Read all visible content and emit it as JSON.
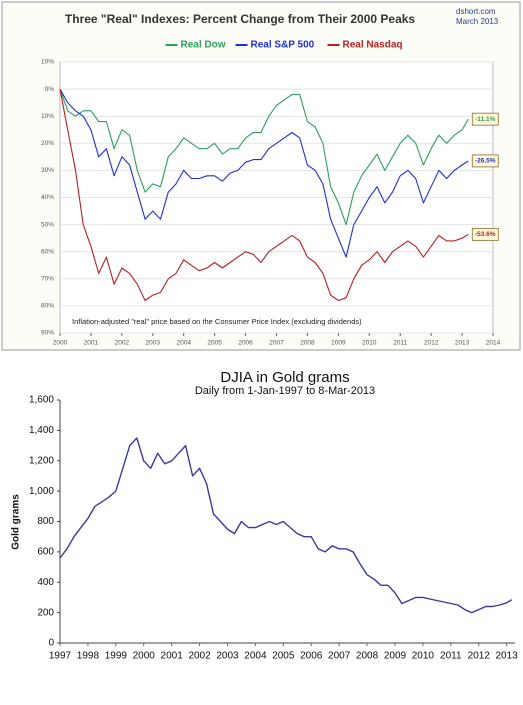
{
  "chart_data": [
    {
      "type": "line",
      "title": "Three \"Real\" Indexes: Percent Change from Their 2000 Peaks",
      "source": "dshort.com",
      "date_note": "March 2013",
      "note": "Inflation-adjusted \"real\" price based on the Consumer Price Index (excluding dividends)",
      "x": [
        2000,
        2000.25,
        2000.5,
        2000.75,
        2001,
        2001.25,
        2001.5,
        2001.75,
        2002,
        2002.25,
        2002.5,
        2002.75,
        2003,
        2003.25,
        2003.5,
        2003.75,
        2004,
        2004.25,
        2004.5,
        2004.75,
        2005,
        2005.25,
        2005.5,
        2005.75,
        2006,
        2006.25,
        2006.5,
        2006.75,
        2007,
        2007.25,
        2007.5,
        2007.75,
        2008,
        2008.25,
        2008.5,
        2008.75,
        2009,
        2009.25,
        2009.5,
        2009.75,
        2010,
        2010.25,
        2010.5,
        2010.75,
        2011,
        2011.25,
        2011.5,
        2011.75,
        2012,
        2012.25,
        2012.5,
        2012.75,
        2013,
        2013.2
      ],
      "series": [
        {
          "name": "Real Dow",
          "color": "#2e9e5b",
          "values": [
            0,
            -8,
            -10,
            -8,
            -8,
            -12,
            -12,
            -22,
            -15,
            -17,
            -30,
            -38,
            -35,
            -36,
            -25,
            -22,
            -18,
            -20,
            -22,
            -22,
            -20,
            -24,
            -22,
            -22,
            -18,
            -16,
            -16,
            -10,
            -6,
            -4,
            -2,
            -2,
            -12,
            -14,
            -20,
            -36,
            -42,
            -50,
            -38,
            -32,
            -28,
            -24,
            -30,
            -25,
            -20,
            -17,
            -20,
            -28,
            -22,
            -17,
            -20,
            -17,
            -15,
            -11.1
          ],
          "value_labels": [
            null,
            null,
            null,
            null,
            null,
            null,
            null,
            null,
            null,
            null,
            null,
            null,
            null,
            null,
            null,
            null,
            null,
            null,
            null,
            null,
            null,
            null,
            null,
            null,
            null,
            null,
            null,
            null,
            null,
            null,
            null,
            null,
            null,
            null,
            null,
            null,
            null,
            null,
            null,
            null,
            null,
            null,
            null,
            null,
            null,
            null,
            null,
            null,
            null,
            null,
            null,
            null,
            null,
            "-11.1%"
          ]
        },
        {
          "name": "Real S&P 500",
          "color": "#1f2fd6",
          "values": [
            0,
            -5,
            -8,
            -10,
            -15,
            -25,
            -22,
            -32,
            -25,
            -28,
            -38,
            -48,
            -45,
            -48,
            -38,
            -35,
            -30,
            -33,
            -33,
            -32,
            -32,
            -34,
            -31,
            -30,
            -27,
            -26,
            -26,
            -22,
            -20,
            -18,
            -16,
            -18,
            -28,
            -30,
            -35,
            -48,
            -55,
            -62,
            -50,
            -45,
            -40,
            -36,
            -42,
            -38,
            -32,
            -30,
            -33,
            -42,
            -36,
            -30,
            -33,
            -30,
            -28,
            -26.5
          ],
          "value_labels": [
            null,
            null,
            null,
            null,
            null,
            null,
            null,
            null,
            null,
            null,
            null,
            null,
            null,
            null,
            null,
            null,
            null,
            null,
            null,
            null,
            null,
            null,
            null,
            null,
            null,
            null,
            null,
            null,
            null,
            null,
            null,
            null,
            null,
            null,
            null,
            null,
            null,
            null,
            null,
            null,
            null,
            null,
            null,
            null,
            null,
            null,
            null,
            null,
            null,
            null,
            null,
            null,
            null,
            "-26.5%"
          ]
        },
        {
          "name": "Real Nasdaq",
          "color": "#b52020",
          "values": [
            0,
            -15,
            -30,
            -50,
            -58,
            -68,
            -62,
            -72,
            -66,
            -68,
            -72,
            -78,
            -76,
            -75,
            -70,
            -68,
            -63,
            -65,
            -67,
            -66,
            -64,
            -66,
            -64,
            -62,
            -60,
            -61,
            -64,
            -60,
            -58,
            -56,
            -54,
            -56,
            -62,
            -64,
            -68,
            -76,
            -78,
            -77,
            -70,
            -65,
            -63,
            -60,
            -64,
            -60,
            -58,
            -56,
            -58,
            -62,
            -58,
            -54,
            -56,
            -56,
            -55,
            -53.6
          ],
          "value_labels": [
            null,
            null,
            null,
            null,
            null,
            null,
            null,
            null,
            null,
            null,
            null,
            null,
            null,
            null,
            null,
            null,
            null,
            null,
            null,
            null,
            null,
            null,
            null,
            null,
            null,
            null,
            null,
            null,
            null,
            null,
            null,
            null,
            null,
            null,
            null,
            null,
            null,
            null,
            null,
            null,
            null,
            null,
            null,
            null,
            null,
            null,
            null,
            null,
            null,
            null,
            null,
            null,
            null,
            "-53.6%"
          ]
        }
      ],
      "xlim": [
        2000,
        2014
      ],
      "xticks": [
        2000,
        2001,
        2002,
        2003,
        2004,
        2005,
        2006,
        2007,
        2008,
        2009,
        2010,
        2011,
        2012,
        2013,
        2014
      ],
      "ylim": [
        -90,
        10
      ],
      "yticks": [
        {
          "value": 10,
          "label": "10%"
        },
        {
          "value": 0,
          "label": "0%"
        },
        {
          "value": -10,
          "label": "10%"
        },
        {
          "value": -20,
          "label": "20%"
        },
        {
          "value": -30,
          "label": "30%"
        },
        {
          "value": -40,
          "label": "40%"
        },
        {
          "value": -50,
          "label": "50%"
        },
        {
          "value": -60,
          "label": "60%"
        },
        {
          "value": -70,
          "label": "70%"
        },
        {
          "value": -80,
          "label": "80%"
        },
        {
          "value": -90,
          "label": "90%"
        }
      ],
      "grid": true,
      "legend": "top"
    },
    {
      "type": "line",
      "title": "DJIA in Gold grams",
      "subtitle": "Daily from 1-Jan-1997 to 8-Mar-2013",
      "y_label": "Gold grams",
      "x": [
        1997,
        1997.25,
        1997.5,
        1997.75,
        1998,
        1998.25,
        1998.5,
        1998.75,
        1999,
        1999.25,
        1999.5,
        1999.75,
        2000,
        2000.25,
        2000.5,
        2000.75,
        2001,
        2001.25,
        2001.5,
        2001.75,
        2002,
        2002.25,
        2002.5,
        2002.75,
        2003,
        2003.25,
        2003.5,
        2003.75,
        2004,
        2004.25,
        2004.5,
        2004.75,
        2005,
        2005.25,
        2005.5,
        2005.75,
        2006,
        2006.25,
        2006.5,
        2006.75,
        2007,
        2007.25,
        2007.5,
        2007.75,
        2008,
        2008.25,
        2008.5,
        2008.75,
        2009,
        2009.25,
        2009.5,
        2009.75,
        2010,
        2010.25,
        2010.5,
        2010.75,
        2011,
        2011.25,
        2011.5,
        2011.75,
        2012,
        2012.25,
        2012.5,
        2012.75,
        2013,
        2013.18
      ],
      "series": [
        {
          "name": "DJIA in Gold grams",
          "color": "#3a3a9e",
          "values": [
            560,
            620,
            700,
            760,
            820,
            900,
            930,
            960,
            1000,
            1150,
            1300,
            1350,
            1200,
            1150,
            1250,
            1180,
            1200,
            1250,
            1300,
            1100,
            1150,
            1050,
            850,
            800,
            750,
            720,
            800,
            760,
            760,
            780,
            800,
            780,
            800,
            760,
            720,
            700,
            700,
            620,
            600,
            640,
            620,
            620,
            600,
            520,
            450,
            420,
            380,
            380,
            330,
            260,
            280,
            300,
            300,
            290,
            280,
            270,
            260,
            250,
            220,
            200,
            220,
            240,
            240,
            250,
            265,
            285
          ]
        }
      ],
      "xlim": [
        1997,
        2013.3
      ],
      "xticks": [
        1997,
        1998,
        1999,
        2000,
        2001,
        2002,
        2003,
        2004,
        2005,
        2006,
        2007,
        2008,
        2009,
        2010,
        2011,
        2012,
        2013
      ],
      "ylim": [
        0,
        1600
      ],
      "yticks": [
        0,
        200,
        400,
        600,
        800,
        {
          "value": 1000,
          "label": "1,000"
        },
        {
          "value": 1200,
          "label": "1,200"
        },
        {
          "value": 1400,
          "label": "1,400"
        },
        {
          "value": 1600,
          "label": "1,600"
        }
      ],
      "grid": false
    }
  ]
}
